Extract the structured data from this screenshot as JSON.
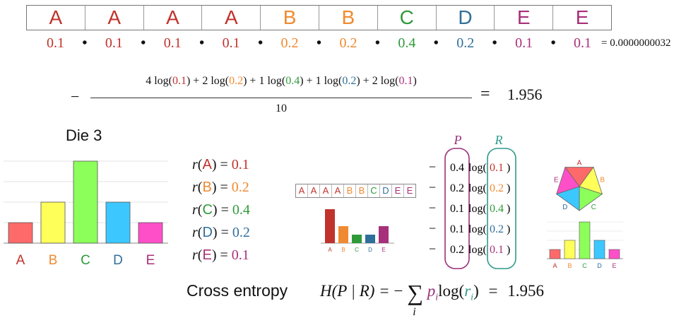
{
  "colors": {
    "A": "#c0322c",
    "B": "#f08a30",
    "C": "#2f9a3a",
    "D": "#2f6f9a",
    "E": "#a8307a",
    "P": "#9a2f7a",
    "R": "#2f9a8a"
  },
  "sequence": [
    "A",
    "A",
    "A",
    "A",
    "B",
    "B",
    "C",
    "D",
    "E",
    "E"
  ],
  "sequence_probs": [
    "0.1",
    "0.1",
    "0.1",
    "0.1",
    "0.2",
    "0.2",
    "0.4",
    "0.2",
    "0.1",
    "0.1"
  ],
  "dot": "•",
  "product_result": "= 0.0000000032",
  "formula": {
    "minus": "−",
    "numerator_parts": [
      {
        "t": "4 log(",
        "c": ""
      },
      {
        "t": "0.1",
        "c": "A"
      },
      {
        "t": ") + 2 log(",
        "c": ""
      },
      {
        "t": "0.2",
        "c": "B"
      },
      {
        "t": ") + 1 log(",
        "c": ""
      },
      {
        "t": "0.4",
        "c": "C"
      },
      {
        "t": ") + 1 log(",
        "c": ""
      },
      {
        "t": "0.2",
        "c": "D"
      },
      {
        "t": ") + 2 log(",
        "c": ""
      },
      {
        "t": "0.1",
        "c": "E"
      },
      {
        "t": ")",
        "c": ""
      }
    ],
    "denominator": "10",
    "equals": "=",
    "value": "1.956"
  },
  "die": {
    "title": "Die 3",
    "labels": [
      "A",
      "B",
      "C",
      "D",
      "E"
    ],
    "values": [
      0.1,
      0.2,
      0.4,
      0.2,
      0.1
    ],
    "bar_colors": [
      "#fe6a6a",
      "#ffff5a",
      "#8cff5a",
      "#3cc8ff",
      "#ff4fc8"
    ]
  },
  "r_lines": [
    {
      "letter": "A",
      "value": "0.1"
    },
    {
      "letter": "B",
      "value": "0.2"
    },
    {
      "letter": "C",
      "value": "0.4"
    },
    {
      "letter": "D",
      "value": "0.2"
    },
    {
      "letter": "E",
      "value": "0.1"
    }
  ],
  "mini_sequence": [
    "A",
    "A",
    "A",
    "A",
    "B",
    "B",
    "C",
    "D",
    "E",
    "E"
  ],
  "mini_chart": {
    "labels": [
      "A",
      "B",
      "C",
      "D",
      "E"
    ],
    "values": [
      0.4,
      0.2,
      0.1,
      0.1,
      0.2
    ],
    "bar_colors": [
      "#c0322c",
      "#f08a30",
      "#2f9a3a",
      "#2f6f9a",
      "#a8307a"
    ]
  },
  "table": {
    "P_label": "P",
    "R_label": "R",
    "rows": [
      {
        "p": "0.4",
        "r": "0.1",
        "rc": "A"
      },
      {
        "p": "0.2",
        "r": "0.2",
        "rc": "B"
      },
      {
        "p": "0.1",
        "r": "0.4",
        "rc": "C"
      },
      {
        "p": "0.1",
        "r": "0.2",
        "rc": "D"
      },
      {
        "p": "0.2",
        "r": "0.1",
        "rc": "E"
      }
    ]
  },
  "pentagon": {
    "labels": [
      "A",
      "B",
      "C",
      "D",
      "E"
    ],
    "colors": [
      "#fe6a6a",
      "#ffff5a",
      "#8cff5a",
      "#3cc8ff",
      "#ff4fc8"
    ],
    "label_colors": [
      "#c0322c",
      "#f08a30",
      "#2f9a3a",
      "#2f6f9a",
      "#a8307a"
    ]
  },
  "small_chart": {
    "labels": [
      "A",
      "B",
      "C",
      "D",
      "E"
    ],
    "values": [
      0.1,
      0.2,
      0.4,
      0.2,
      0.1
    ],
    "bar_colors": [
      "#fe6a6a",
      "#ffff5a",
      "#8cff5a",
      "#3cc8ff",
      "#ff4fc8"
    ],
    "label_colors": [
      "#c0322c",
      "#f08a30",
      "#2f9a3a",
      "#2f6f9a",
      "#a8307a"
    ]
  },
  "cross_entropy": {
    "label": "Cross entropy",
    "lhs": "H(P | R) =",
    "minus": "−",
    "sum": "∑",
    "index": "i",
    "p": "p",
    "log": "log(",
    "r": "r",
    "sub": "i",
    "close": ")",
    "equals": "=",
    "value": "1.956"
  }
}
